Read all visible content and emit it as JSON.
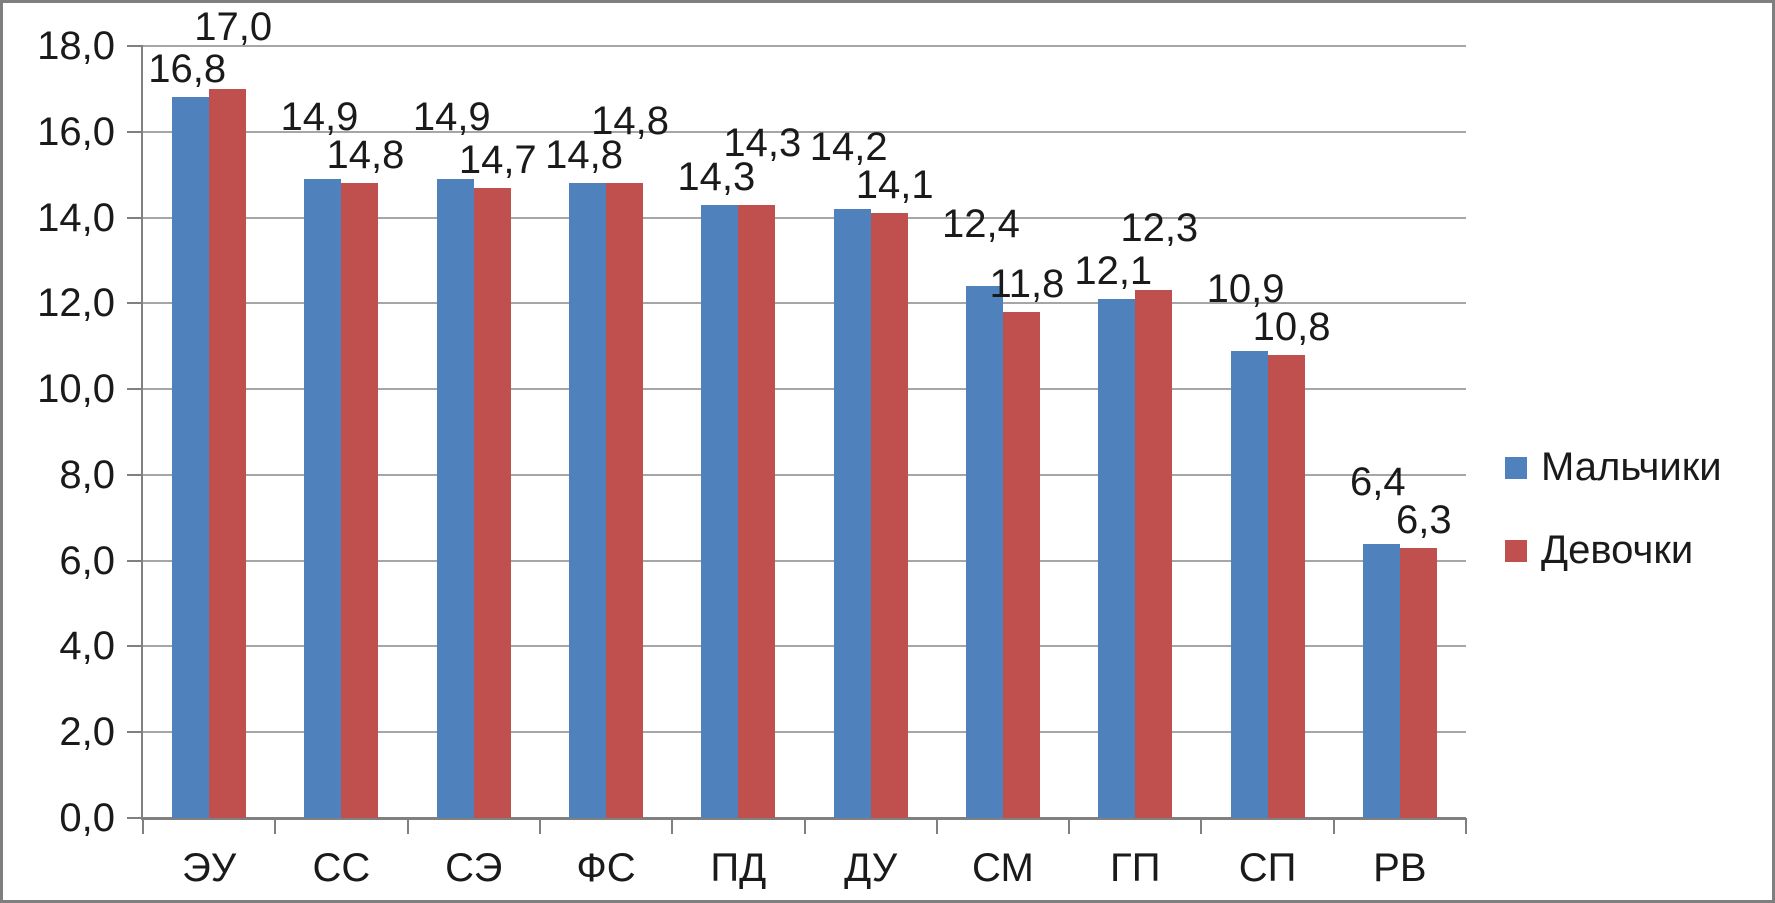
{
  "chart_data": {
    "type": "bar",
    "title": "",
    "xlabel": "",
    "ylabel": "",
    "categories": [
      "ЭУ",
      "СС",
      "СЭ",
      "ФС",
      "ПД",
      "ДУ",
      "СМ",
      "ГП",
      "СП",
      "РВ"
    ],
    "series": [
      {
        "name": "Мальчики",
        "color": "#4F81BD",
        "values": [
          16.8,
          14.9,
          14.9,
          14.8,
          14.3,
          14.2,
          12.4,
          12.1,
          10.9,
          6.4
        ],
        "labels": [
          "16,8",
          "14,9",
          "14,9",
          "14,8",
          "14,3",
          "14,2",
          "12,4",
          "12,1",
          "10,9",
          "6,4"
        ]
      },
      {
        "name": "Девочки",
        "color": "#C0504D",
        "values": [
          17.0,
          14.8,
          14.7,
          14.8,
          14.3,
          14.1,
          11.8,
          12.3,
          10.8,
          6.3
        ],
        "labels": [
          "17,0",
          "14,8",
          "14,7",
          "14,8",
          "14,3",
          "14,1",
          "11,8",
          "12,3",
          "10,8",
          "6,3"
        ]
      }
    ],
    "ylim": [
      0,
      18
    ],
    "ytick_step": 2,
    "y_tick_labels": [
      "0,0",
      "2,0",
      "4,0",
      "6,0",
      "8,0",
      "10,0",
      "12,0",
      "14,0",
      "16,0",
      "18,0"
    ],
    "decimal_separator": ",",
    "grid": true,
    "legend_position": "right",
    "colors": {
      "gridline": "#a6a6a6",
      "axis": "#808080",
      "text": "#1a1a1a",
      "frame_border": "#7f7f7f",
      "background": "#ffffff"
    }
  }
}
